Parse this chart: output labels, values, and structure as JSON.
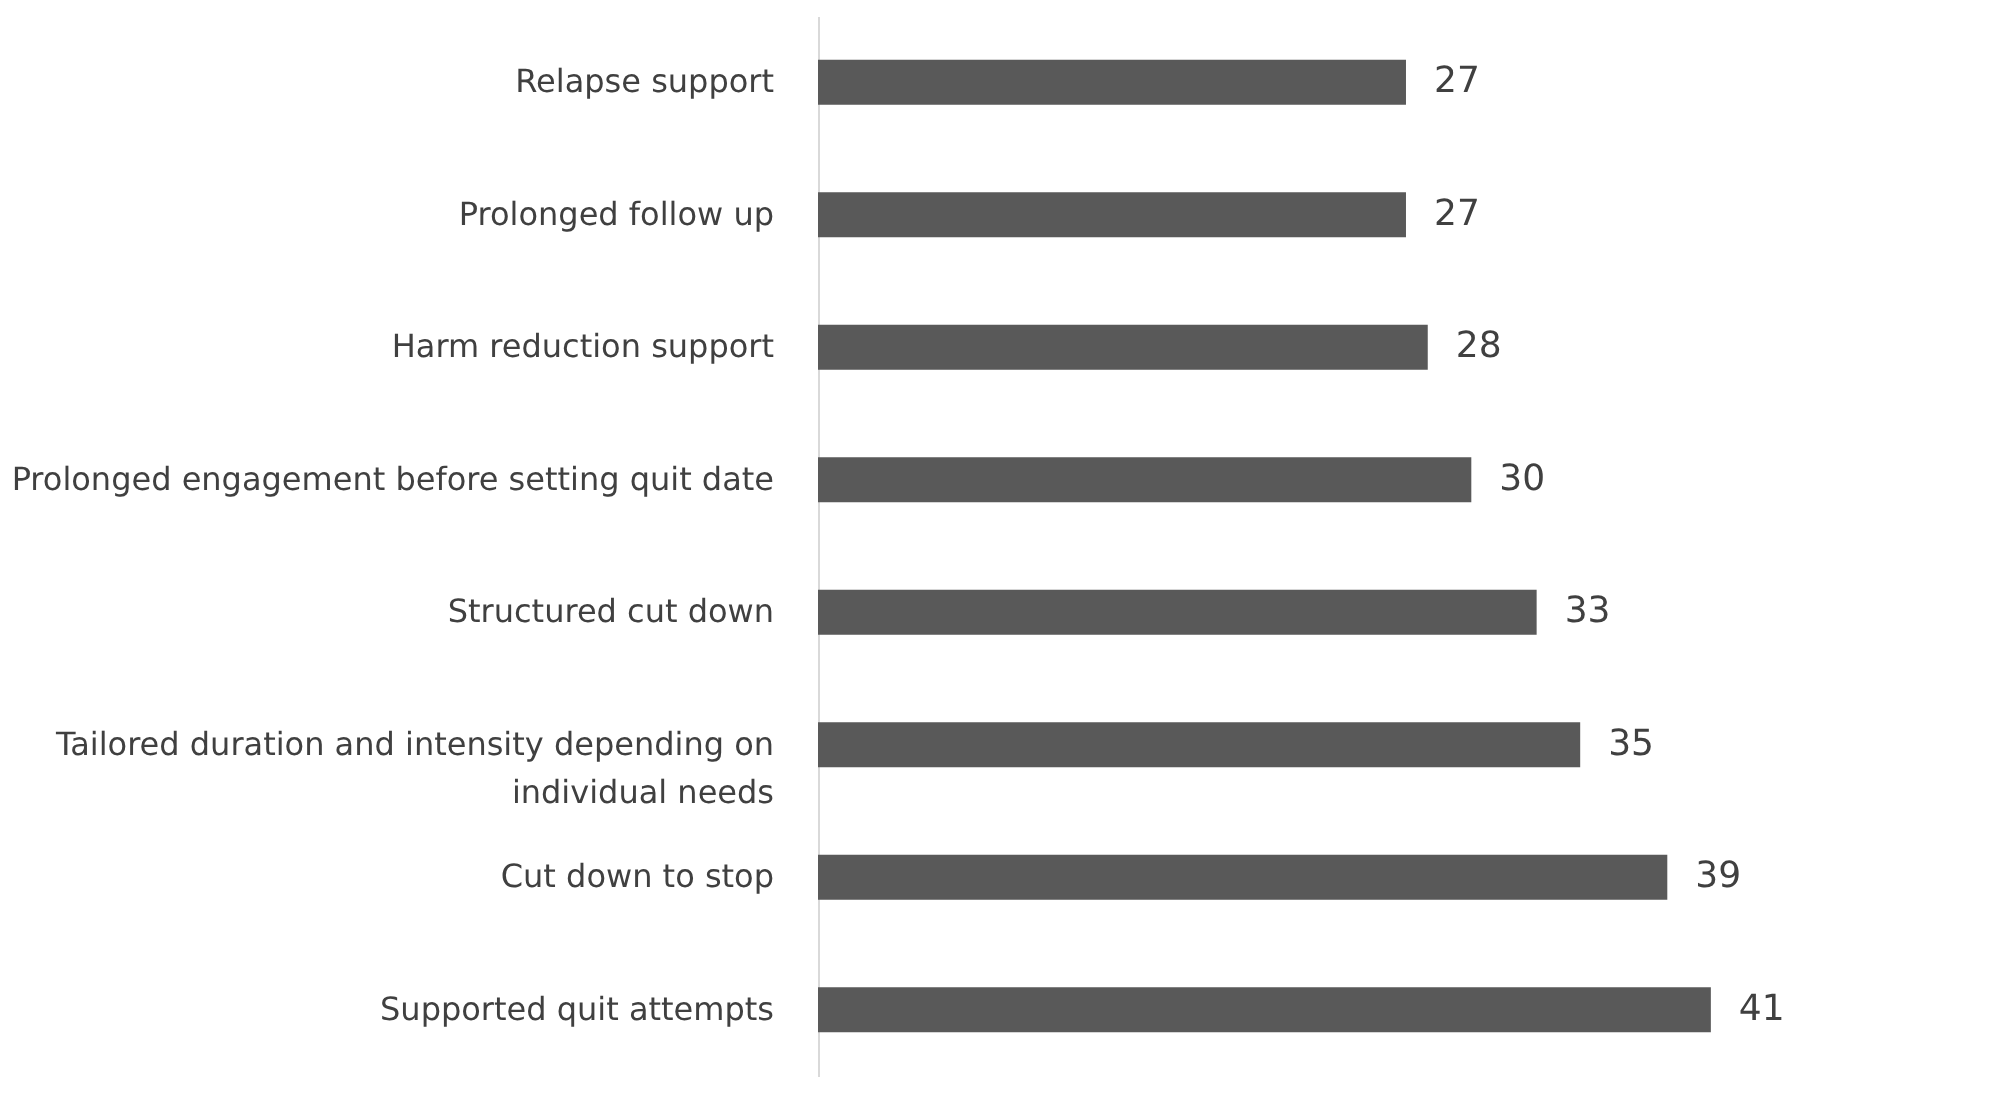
{
  "chart_data": {
    "type": "bar",
    "orientation": "horizontal",
    "categories": [
      "Relapse support",
      "Prolonged follow up",
      "Harm reduction support",
      "Prolonged engagement before setting quit date",
      "Structured cut down",
      "Tailored duration and intensity depending on individual needs",
      "Cut down to stop",
      "Supported quit attempts"
    ],
    "values": [
      27,
      27,
      28,
      30,
      33,
      35,
      39,
      41
    ],
    "color": "#595959",
    "data_labels": true,
    "grid": false
  }
}
